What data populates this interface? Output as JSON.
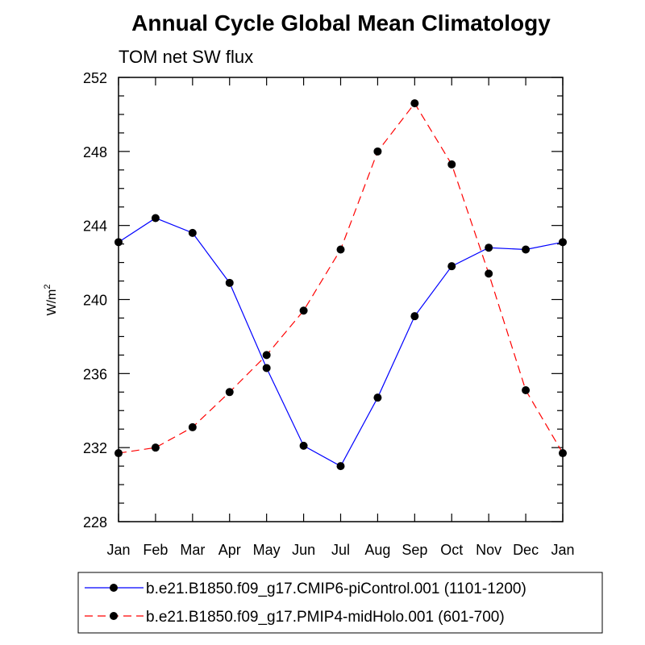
{
  "chart_data": {
    "type": "line",
    "title": "Annual Cycle Global Mean Climatology",
    "subtitle": "TOM net SW flux",
    "ylabel": "W/m",
    "ylabel_sup": "2",
    "categories": [
      "Jan",
      "Feb",
      "Mar",
      "Apr",
      "May",
      "Jun",
      "Jul",
      "Aug",
      "Sep",
      "Oct",
      "Nov",
      "Dec",
      "Jan"
    ],
    "ylim": [
      228,
      252
    ],
    "yticks": [
      228,
      232,
      236,
      240,
      244,
      248,
      252
    ],
    "ytick_labels": [
      "228",
      "232",
      "236",
      "240",
      "244",
      "248",
      "252"
    ],
    "grid": false,
    "legend_position": "bottom",
    "series": [
      {
        "name": "b.e21.B1850.f09_g17.CMIP6-piControl.001 (1101-1200)",
        "color": "#0000ff",
        "line_style": "solid",
        "values": [
          243.1,
          244.4,
          243.6,
          240.9,
          236.3,
          232.1,
          231.0,
          234.7,
          239.1,
          241.8,
          242.8,
          242.7,
          243.1
        ]
      },
      {
        "name": "b.e21.B1850.f09_g17.PMIP4-midHolo.001 (601-700)",
        "color": "#ff0000",
        "line_style": "dashed",
        "values": [
          231.7,
          232.0,
          233.1,
          235.0,
          237.0,
          239.4,
          242.7,
          248.0,
          250.6,
          247.3,
          241.4,
          235.1,
          231.7
        ]
      }
    ]
  }
}
